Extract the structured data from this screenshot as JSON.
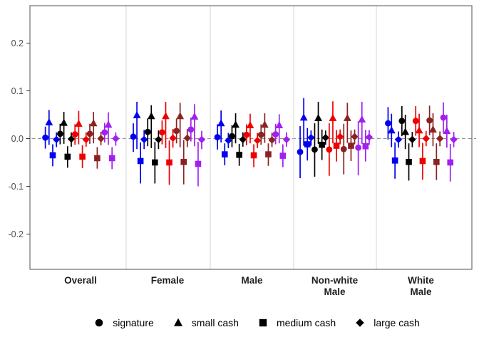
{
  "chart_data": {
    "type": "scatter",
    "subtype": "faceted-pointrange (coefficient plot with 95% CI whiskers)",
    "title": "",
    "xlabel": "",
    "ylabel": "",
    "ylim": [
      -0.275,
      0.28
    ],
    "grid": "off",
    "zero_reference_line": 0.0,
    "y_tick_values": [
      0.2,
      0.1,
      0.0,
      -0.1,
      -0.2
    ],
    "y_tick_labels": [
      "0.2",
      "0.1",
      "0.0",
      "-0.1",
      "-0.2"
    ],
    "facets": [
      "Overall",
      "Female",
      "Male",
      "Non-white\nMale",
      "White\nMale"
    ],
    "shape_legend": [
      {
        "shape": "circle",
        "label": "signature"
      },
      {
        "shape": "triangle",
        "label": "small cash"
      },
      {
        "shape": "square",
        "label": "medium cash"
      },
      {
        "shape": "diamond",
        "label": "large cash"
      }
    ],
    "color_series": [
      "#0000EE",
      "#000000",
      "#EE0000",
      "#8B2222",
      "#A020F0"
    ],
    "legend_position": "bottom",
    "points_note": "estimates[facet][color][shape] = [estimate, ci_low, ci_high]; facet order as in 'facets'; color order as in 'color_series'; shape order as in 'shape_legend'",
    "estimates": [
      [
        [
          [
            0.002,
            -0.021,
            0.025
          ],
          [
            0.034,
            -0.013,
            0.06
          ],
          [
            -0.035,
            -0.058,
            -0.012
          ],
          [
            -0.002,
            -0.018,
            0.013
          ]
        ],
        [
          [
            0.01,
            -0.012,
            0.031
          ],
          [
            0.033,
            -0.011,
            0.056
          ],
          [
            -0.038,
            -0.061,
            -0.016
          ],
          [
            -0.001,
            -0.017,
            0.013
          ]
        ],
        [
          [
            0.009,
            -0.013,
            0.03
          ],
          [
            0.031,
            -0.012,
            0.058
          ],
          [
            -0.038,
            -0.062,
            -0.014
          ],
          [
            -0.002,
            -0.017,
            0.013
          ]
        ],
        [
          [
            0.01,
            -0.011,
            0.031
          ],
          [
            0.032,
            -0.01,
            0.056
          ],
          [
            -0.041,
            -0.063,
            -0.018
          ],
          [
            0.0,
            -0.014,
            0.014
          ]
        ],
        [
          [
            0.013,
            -0.008,
            0.033
          ],
          [
            0.029,
            -0.013,
            0.055
          ],
          [
            -0.041,
            -0.064,
            -0.018
          ],
          [
            0.0,
            -0.015,
            0.013
          ]
        ]
      ],
      [
        [
          [
            0.004,
            -0.028,
            0.032
          ],
          [
            0.049,
            -0.022,
            0.077
          ],
          [
            -0.047,
            -0.094,
            -0.008
          ],
          [
            -0.002,
            -0.022,
            0.018
          ]
        ],
        [
          [
            0.014,
            -0.016,
            0.042
          ],
          [
            0.047,
            -0.02,
            0.07
          ],
          [
            -0.05,
            -0.094,
            -0.007
          ],
          [
            -0.002,
            -0.022,
            0.017
          ]
        ],
        [
          [
            0.013,
            -0.012,
            0.038
          ],
          [
            0.047,
            -0.02,
            0.077
          ],
          [
            -0.05,
            -0.097,
            -0.004
          ],
          [
            0.001,
            -0.019,
            0.02
          ]
        ],
        [
          [
            0.016,
            -0.01,
            0.042
          ],
          [
            0.047,
            -0.018,
            0.075
          ],
          [
            -0.049,
            -0.096,
            -0.003
          ],
          [
            0.001,
            -0.018,
            0.02
          ]
        ],
        [
          [
            0.019,
            -0.006,
            0.044
          ],
          [
            0.046,
            -0.016,
            0.072
          ],
          [
            -0.053,
            -0.1,
            -0.007
          ],
          [
            -0.002,
            -0.022,
            0.016
          ]
        ]
      ],
      [
        [
          [
            0.003,
            -0.023,
            0.03
          ],
          [
            0.032,
            -0.008,
            0.059
          ],
          [
            -0.033,
            -0.056,
            -0.01
          ],
          [
            -0.004,
            -0.02,
            0.012
          ]
        ],
        [
          [
            0.005,
            -0.018,
            0.028
          ],
          [
            0.029,
            -0.01,
            0.053
          ],
          [
            -0.034,
            -0.057,
            -0.011
          ],
          [
            -0.002,
            -0.017,
            0.013
          ]
        ],
        [
          [
            0.008,
            -0.014,
            0.03
          ],
          [
            0.028,
            -0.01,
            0.052
          ],
          [
            -0.035,
            -0.06,
            -0.012
          ],
          [
            -0.004,
            -0.02,
            0.012
          ]
        ],
        [
          [
            0.008,
            -0.013,
            0.03
          ],
          [
            0.029,
            -0.009,
            0.053
          ],
          [
            -0.033,
            -0.057,
            -0.01
          ],
          [
            -0.003,
            -0.018,
            0.012
          ]
        ],
        [
          [
            0.009,
            -0.012,
            0.031
          ],
          [
            0.028,
            -0.01,
            0.051
          ],
          [
            -0.036,
            -0.06,
            -0.012
          ],
          [
            -0.002,
            -0.017,
            0.013
          ]
        ]
      ],
      [
        [
          [
            -0.028,
            -0.083,
            0.026
          ],
          [
            0.044,
            -0.015,
            0.085
          ],
          [
            -0.012,
            -0.046,
            0.022
          ],
          [
            0.002,
            -0.015,
            0.017
          ]
        ],
        [
          [
            -0.023,
            -0.08,
            0.032
          ],
          [
            0.043,
            -0.011,
            0.077
          ],
          [
            -0.013,
            -0.045,
            0.019
          ],
          [
            0.002,
            -0.013,
            0.017
          ]
        ],
        [
          [
            -0.023,
            -0.078,
            0.032
          ],
          [
            0.043,
            -0.01,
            0.078
          ],
          [
            -0.015,
            -0.048,
            0.018
          ],
          [
            0.004,
            -0.012,
            0.019
          ]
        ],
        [
          [
            -0.022,
            -0.075,
            0.031
          ],
          [
            0.043,
            -0.009,
            0.075
          ],
          [
            -0.015,
            -0.047,
            0.017
          ],
          [
            0.004,
            -0.012,
            0.019
          ]
        ],
        [
          [
            -0.019,
            -0.077,
            0.036
          ],
          [
            0.04,
            -0.011,
            0.077
          ],
          [
            -0.016,
            -0.048,
            0.018
          ],
          [
            0.003,
            -0.013,
            0.018
          ]
        ]
      ],
      [
        [
          [
            0.032,
            -0.002,
            0.066
          ],
          [
            0.017,
            -0.018,
            0.052
          ],
          [
            -0.046,
            -0.084,
            -0.008
          ],
          [
            -0.002,
            -0.019,
            0.015
          ]
        ],
        [
          [
            0.037,
            0.005,
            0.068
          ],
          [
            0.014,
            -0.022,
            0.05
          ],
          [
            -0.049,
            -0.088,
            -0.01
          ],
          [
            -0.002,
            -0.018,
            0.014
          ]
        ],
        [
          [
            0.037,
            0.006,
            0.068
          ],
          [
            0.017,
            -0.018,
            0.052
          ],
          [
            -0.047,
            -0.086,
            -0.009
          ],
          [
            0.0,
            -0.016,
            0.016
          ]
        ],
        [
          [
            0.038,
            0.007,
            0.069
          ],
          [
            0.019,
            -0.016,
            0.053
          ],
          [
            -0.049,
            -0.087,
            -0.01
          ],
          [
            0.0,
            -0.016,
            0.015
          ]
        ],
        [
          [
            0.044,
            0.012,
            0.076
          ],
          [
            0.016,
            -0.019,
            0.05
          ],
          [
            -0.05,
            -0.09,
            -0.011
          ],
          [
            -0.002,
            -0.018,
            0.014
          ]
        ]
      ]
    ],
    "style_colors": {
      "panel_border": "#6E6E6E",
      "facet_separator": "#D4D4D4",
      "zero_line": "#8E8E8E",
      "tick_text": "#4D4D4D",
      "facet_text": "#1F1F1F"
    }
  }
}
